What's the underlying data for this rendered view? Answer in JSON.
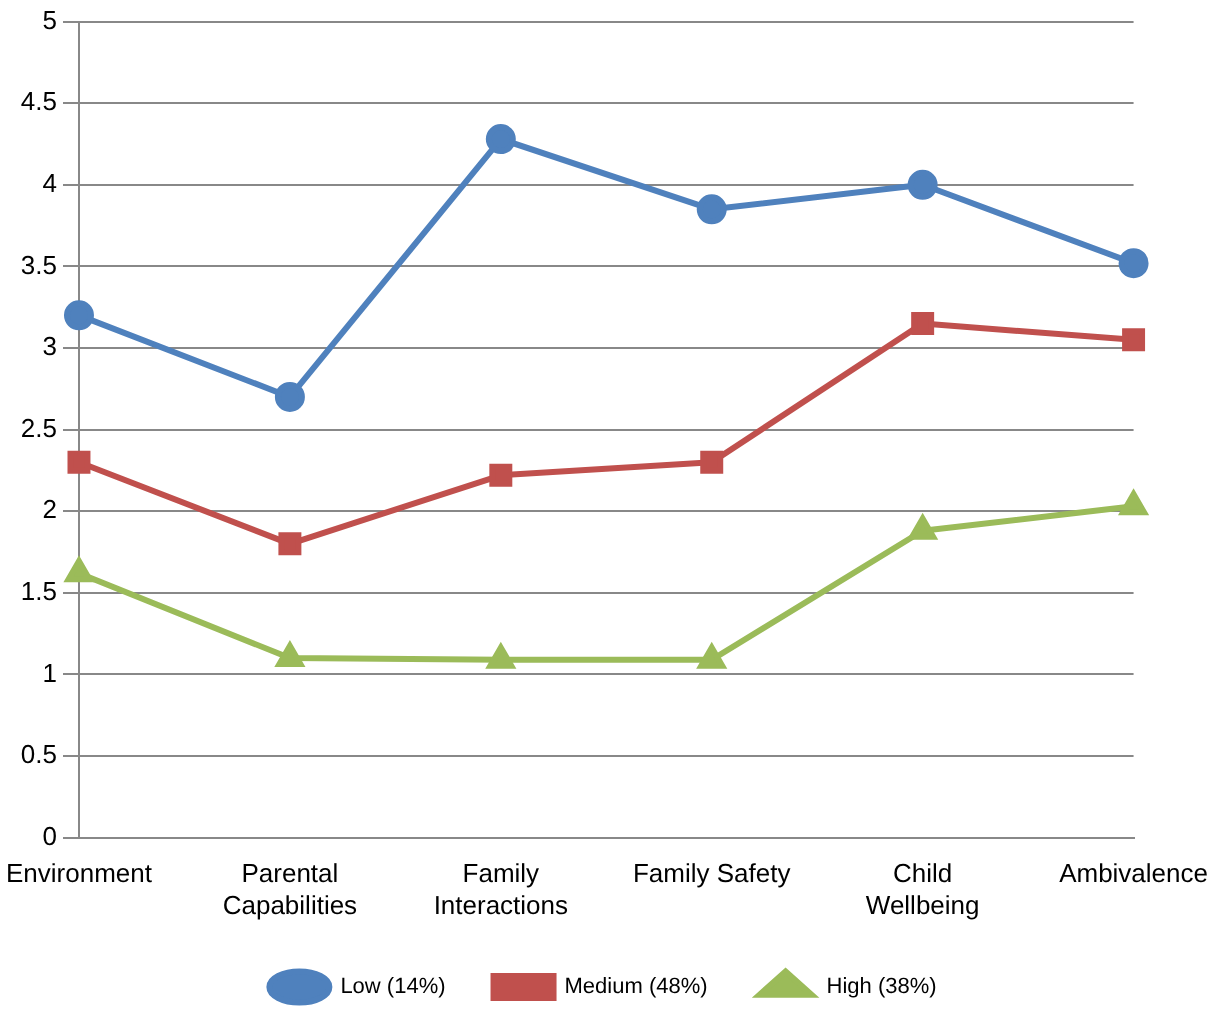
{
  "chart_data": {
    "type": "line",
    "categories": [
      "Environment",
      "Parental Capabilities",
      "Family Interactions",
      "Family Safety",
      "Child Wellbeing",
      "Ambivalence"
    ],
    "series": [
      {
        "name": "Low (14%)",
        "color": "#4f81bd",
        "marker": "circle",
        "values": [
          3.2,
          2.7,
          4.28,
          3.85,
          4.0,
          3.52
        ]
      },
      {
        "name": "Medium (48%)",
        "color": "#c0504d",
        "marker": "square",
        "values": [
          2.3,
          1.8,
          2.22,
          2.3,
          3.15,
          3.05
        ]
      },
      {
        "name": "High (38%)",
        "color": "#9bbb59",
        "marker": "triangle",
        "values": [
          1.62,
          1.1,
          1.09,
          1.09,
          1.88,
          2.03
        ]
      }
    ],
    "ylim": [
      0,
      5
    ],
    "yticks": [
      0,
      0.5,
      1,
      1.5,
      2,
      2.5,
      3,
      3.5,
      4,
      4.5,
      5
    ],
    "grid": "y",
    "legend": "bottom",
    "line_style": "solid"
  }
}
